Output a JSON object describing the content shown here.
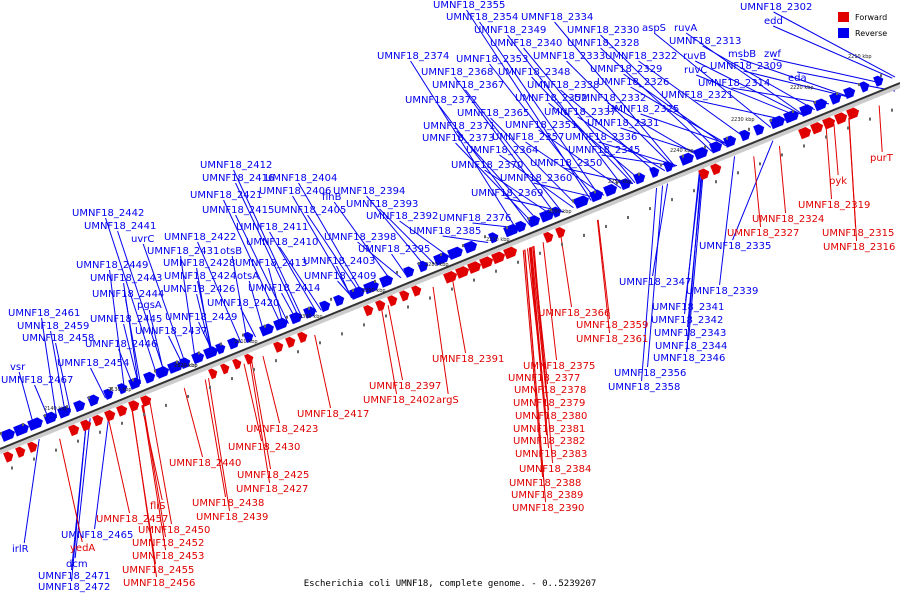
{
  "caption": "Escherichia coli UMNF18, complete genome. - 0..5239207",
  "legend": {
    "forward_label": "Forward",
    "reverse_label": "Reverse",
    "forward_color": "#e00000",
    "reverse_color": "#0000ee"
  },
  "axis_ticks": [
    "2120 kbp",
    "2130 kbp",
    "2140 kbp",
    "2210 kbp",
    "2220 kbp",
    "2230 kbp",
    "2240 kbp",
    "2250 kbp",
    "2260 kbp",
    "2270 kbp",
    "2280 kbp",
    "2290 kbp",
    "2300 kbp",
    "2310 kbp",
    "2320 kbp"
  ],
  "reverse_labels": [
    "UMNF18_2355",
    "UMNF18_2354",
    "UMNF18_2334",
    "UMNF18_2349",
    "UMNF18_2330",
    "aspS",
    "ruvA",
    "UMNF18_2302",
    "edd",
    "UMNF18_2340",
    "UMNF18_2328",
    "UMNF18_2313",
    "UMNF18_2333",
    "UMNF18_2322",
    "ruvB",
    "msbB",
    "zwf",
    "eda",
    "UMNF18_2374",
    "UMNF18_2353",
    "UMNF18_2368",
    "UMNF18_2348",
    "UMNF18_2329",
    "ruvC",
    "UMNF18_2309",
    "UMNF18_2367",
    "UMNF18_2338",
    "UMNF18_2326",
    "UMNF18_2314",
    "UMNF18_2372",
    "UMNF18_2352",
    "UMNF18_2332",
    "UMNF18_2321",
    "UMNF18_2365",
    "UMNF18_2337",
    "UMNF18_2325",
    "UMNF18_2371",
    "UMNF18_2351",
    "UMNF18_2331",
    "UMNF18_2373",
    "UMNF18_2357",
    "UMNF18_2336",
    "UMNF18_2364",
    "UMNF18_2345",
    "UMNF18_2370",
    "UMNF18_2350",
    "UMNF18_2360",
    "UMNF18_2369",
    "UMNF18_2412",
    "UMNF18_2416",
    "UMNF18_2404",
    "UMNF18_2406",
    "UMNF18_2421",
    "UMNF18_2394",
    "UMNF18_2393",
    "flhB",
    "UMNF18_2415",
    "UMNF18_2405",
    "UMNF18_2442",
    "UMNF18_2392",
    "UMNF18_2376",
    "UMNF18_2441",
    "UMNF18_2411",
    "UMNF18_2398",
    "UMNF18_2385",
    "uvrC",
    "UMNF18_2422",
    "UMNF18_2410",
    "UMNF18_2395",
    "UMNF18_2431",
    "otsB",
    "UMNF18_2449",
    "UMNF18_2428",
    "UMNF18_2413",
    "UMNF18_2403",
    "UMNF18_2443",
    "UMNF18_2424",
    "otsA",
    "UMNF18_2409",
    "UMNF18_2444",
    "UMNF18_2426",
    "UMNF18_2414",
    "pgsA",
    "UMNF18_2420",
    "UMNF18_2461",
    "UMNF18_2445",
    "UMNF18_2429",
    "UMNF18_2459",
    "UMNF18_2437",
    "UMNF18_2458",
    "UMNF18_2446",
    "UMNF18_2454",
    "vsr",
    "UMNF18_2467",
    "UMNF18_2335",
    "UMNF18_2347",
    "UMNF18_2339",
    "UMNF18_2341",
    "UMNF18_2342",
    "UMNF18_2343",
    "UMNF18_2344",
    "UMNF18_2346",
    "UMNF18_2356",
    "UMNF18_2358",
    "irlR",
    "dcm",
    "UMNF18_2471",
    "UMNF18_2472",
    "UMNF18_2465"
  ],
  "forward_labels": [
    "purT",
    "pyk",
    "UMNF18_2319",
    "UMNF18_2324",
    "UMNF18_2327",
    "UMNF18_2315",
    "UMNF18_2316",
    "UMNF18_2366",
    "UMNF18_2359",
    "UMNF18_2361",
    "UMNF18_2391",
    "UMNF18_2375",
    "UMNF18_2377",
    "UMNF18_2378",
    "UMNF18_2379",
    "UMNF18_2380",
    "UMNF18_2381",
    "UMNF18_2382",
    "UMNF18_2383",
    "UMNF18_2384",
    "UMNF18_2388",
    "UMNF18_2389",
    "UMNF18_2390",
    "UMNF18_2397",
    "argS",
    "UMNF18_2402",
    "UMNF18_2417",
    "UMNF18_2423",
    "UMNF18_2430",
    "UMNF18_2440",
    "UMNF18_2425",
    "UMNF18_2427",
    "fliS",
    "UMNF18_2438",
    "UMNF18_2439",
    "UMNF18_2457",
    "UMNF18_2450",
    "UMNF18_2452",
    "UMNF18_2453",
    "UMNF18_2455",
    "UMNF18_2456",
    "yedA"
  ]
}
